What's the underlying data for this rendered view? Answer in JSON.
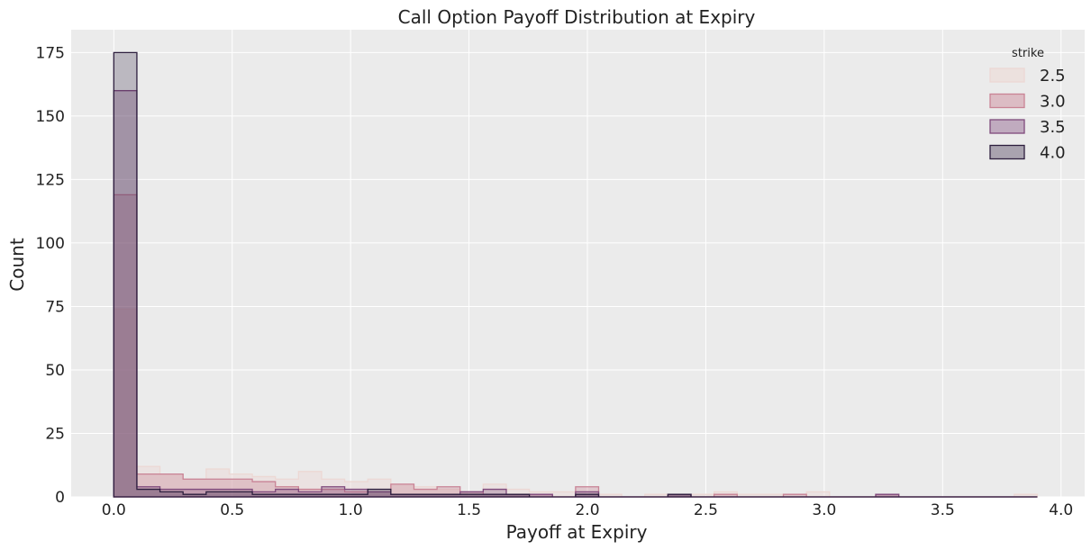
{
  "chart_data": {
    "type": "histogram",
    "title": "Call Option Payoff Distribution at Expiry",
    "xlabel": "Payoff at Expiry",
    "ylabel": "Count",
    "xlim": [
      -0.18,
      4.1
    ],
    "ylim": [
      0,
      184
    ],
    "xticks": [
      0.0,
      0.5,
      1.0,
      1.5,
      2.0,
      2.5,
      3.0,
      3.5,
      4.0
    ],
    "xtick_labels": [
      "0.0",
      "0.5",
      "1.0",
      "1.5",
      "2.0",
      "2.5",
      "3.0",
      "3.5",
      "4.0"
    ],
    "yticks": [
      0,
      25,
      50,
      75,
      100,
      125,
      150,
      175
    ],
    "ytick_labels": [
      "0",
      "25",
      "50",
      "75",
      "100",
      "125",
      "150",
      "175"
    ],
    "grid": true,
    "background": "#ebebeb",
    "bin_edges": [
      0.0,
      0.0975,
      0.195,
      0.2925,
      0.39,
      0.4875,
      0.585,
      0.6825,
      0.78,
      0.8775,
      0.975,
      1.0725,
      1.17,
      1.2675,
      1.365,
      1.4625,
      1.56,
      1.6575,
      1.755,
      1.8525,
      1.95,
      2.0475,
      2.145,
      2.2425,
      2.34,
      2.4375,
      2.535,
      2.6325,
      2.73,
      2.8275,
      2.925,
      3.0225,
      3.12,
      3.2175,
      3.315,
      3.4125,
      3.51,
      3.6075,
      3.705,
      3.8025,
      3.9
    ],
    "legend": {
      "title": "strike",
      "position": "top-right"
    },
    "series": [
      {
        "name": "2.5",
        "color": "#ecd8d4",
        "fill_opacity": 0.45,
        "values": [
          74,
          12,
          9,
          7,
          11,
          9,
          8,
          7,
          10,
          7,
          6,
          7,
          5,
          4,
          3,
          2,
          5,
          3,
          2,
          2,
          1,
          1,
          0,
          1,
          1,
          1,
          2,
          1,
          1,
          0,
          2,
          0,
          0,
          1,
          0,
          0,
          0,
          0,
          0,
          1
        ]
      },
      {
        "name": "3.0",
        "color": "#c98395",
        "fill_opacity": 0.35,
        "values": [
          119,
          9,
          9,
          7,
          7,
          7,
          6,
          4,
          3,
          3,
          2,
          2,
          5,
          3,
          4,
          2,
          1,
          1,
          1,
          0,
          4,
          0,
          0,
          0,
          1,
          0,
          1,
          0,
          0,
          1,
          0,
          0,
          0,
          1,
          0,
          0,
          0,
          0,
          0,
          0
        ]
      },
      {
        "name": "3.5",
        "color": "#7f4a7c",
        "fill_opacity": 0.3,
        "values": [
          160,
          4,
          3,
          3,
          3,
          3,
          2,
          3,
          2,
          4,
          3,
          2,
          1,
          1,
          1,
          2,
          3,
          1,
          1,
          0,
          2,
          0,
          0,
          0,
          1,
          0,
          0,
          0,
          0,
          0,
          0,
          0,
          0,
          1,
          0,
          0,
          0,
          0,
          0,
          0
        ]
      },
      {
        "name": "4.0",
        "color": "#2d1e3e",
        "fill_opacity": 0.25,
        "values": [
          175,
          3,
          2,
          1,
          2,
          2,
          1,
          1,
          1,
          1,
          1,
          3,
          1,
          1,
          1,
          1,
          1,
          1,
          0,
          0,
          1,
          0,
          0,
          0,
          1,
          0,
          0,
          0,
          0,
          0,
          0,
          0,
          0,
          0,
          0,
          0,
          0,
          0,
          0,
          0
        ]
      }
    ]
  }
}
